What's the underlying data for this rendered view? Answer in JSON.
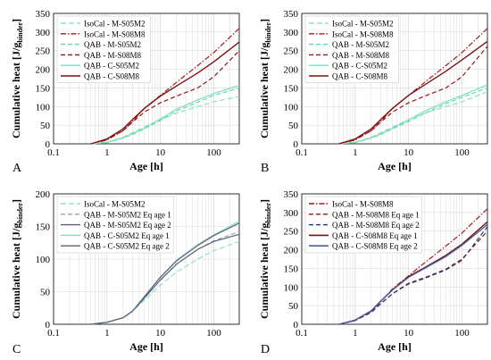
{
  "figure": {
    "ylabel_main": "Cumulative heat [J/g",
    "ylabel_sub": "binder",
    "ylabel_close": "]"
  },
  "colors": {
    "isocal_s05": "#8fe3c2",
    "isocal_s08": "#a01818",
    "qab_m_s05": "#62d9a7",
    "qab_m_s08": "#8b1a1a",
    "qab_c_s05": "#7ddfb8",
    "qab_c_s08": "#7a1212",
    "qab_eq1_s05": "#9aa0b4",
    "qab_eq2_s05": "#5c607a",
    "qab_eq1_s08": "#1f3b74",
    "qab_eq2_s08": "#4a5f9a",
    "grid": "#d9d9d9"
  },
  "chart_data": [
    {
      "panel": "A",
      "type": "line",
      "xscale": "log",
      "xlabel": "Age [h]",
      "ylabel": "Cumulative heat [J/gbinder]",
      "xlim": [
        0.1,
        300
      ],
      "ylim": [
        0,
        350
      ],
      "yticks": [
        0,
        50,
        100,
        150,
        200,
        250,
        300,
        350
      ],
      "xticks": [
        0.1,
        1,
        10,
        100
      ],
      "xticklabels": [
        "0.1",
        "1",
        "10",
        "100"
      ],
      "grid": true,
      "legend": "top-left",
      "series": [
        {
          "name": "IsoCal - M-S05M2",
          "style": "isocal_s05",
          "x": [
            0.5,
            1,
            2,
            3,
            5,
            10,
            20,
            50,
            100,
            300
          ],
          "y": [
            0,
            4,
            18,
            30,
            45,
            65,
            82,
            100,
            113,
            127
          ]
        },
        {
          "name": "IsoCal - M-S08M8",
          "style": "isocal_s08",
          "x": [
            0.5,
            1,
            2,
            3,
            5,
            10,
            20,
            50,
            100,
            300
          ],
          "y": [
            0,
            10,
            35,
            60,
            95,
            130,
            165,
            210,
            245,
            310
          ]
        },
        {
          "name": "QAB - M-S05M2",
          "style": "qab_m_s05",
          "x": [
            0.5,
            1,
            2,
            3,
            5,
            10,
            20,
            50,
            100,
            300
          ],
          "y": [
            0,
            3,
            15,
            25,
            40,
            63,
            88,
            112,
            130,
            150
          ]
        },
        {
          "name": "QAB - M-S08M8",
          "style": "qab_m_s08",
          "x": [
            0.5,
            1,
            2,
            3,
            5,
            10,
            20,
            50,
            100,
            300
          ],
          "y": [
            0,
            12,
            35,
            58,
            85,
            110,
            128,
            150,
            180,
            250
          ]
        },
        {
          "name": "QAB - C-S05M2",
          "style": "qab_c_s05",
          "x": [
            0.5,
            1,
            2,
            3,
            5,
            10,
            20,
            50,
            100,
            300
          ],
          "y": [
            0,
            4,
            16,
            27,
            42,
            67,
            93,
            118,
            135,
            157
          ]
        },
        {
          "name": "QAB - C-S08M8",
          "style": "qab_c_s08",
          "x": [
            0.5,
            1,
            2,
            3,
            5,
            10,
            20,
            50,
            100,
            300
          ],
          "y": [
            0,
            13,
            40,
            65,
            95,
            128,
            155,
            190,
            220,
            273
          ]
        }
      ]
    },
    {
      "panel": "B",
      "type": "line",
      "xscale": "log",
      "xlabel": "Age [h]",
      "ylabel": "Cumulative heat [J/gbinder]",
      "xlim": [
        0.1,
        300
      ],
      "ylim": [
        0,
        350
      ],
      "yticks": [
        0,
        50,
        100,
        150,
        200,
        250,
        300,
        350
      ],
      "xticks": [
        0.1,
        1,
        10,
        100
      ],
      "xticklabels": [
        "0.1",
        "1",
        "10",
        "100"
      ],
      "grid": true,
      "legend": "top-left",
      "series": [
        {
          "name": "IsoCal - M-S05M2",
          "style": "isocal_s05",
          "x": [
            0.5,
            1,
            2,
            3,
            5,
            10,
            20,
            50,
            100,
            300
          ],
          "y": [
            0,
            4,
            18,
            30,
            45,
            65,
            82,
            100,
            113,
            140
          ]
        },
        {
          "name": "IsoCal - M-S08M8",
          "style": "isocal_s08",
          "x": [
            0.5,
            1,
            2,
            3,
            5,
            10,
            20,
            50,
            100,
            300
          ],
          "y": [
            0,
            10,
            35,
            60,
            95,
            130,
            165,
            210,
            245,
            310
          ]
        },
        {
          "name": "QAB - M-S05M2",
          "style": "qab_m_s05",
          "x": [
            0.5,
            1,
            2,
            3,
            5,
            10,
            20,
            50,
            100,
            300
          ],
          "y": [
            0,
            3,
            15,
            25,
            40,
            60,
            82,
            108,
            125,
            150
          ]
        },
        {
          "name": "QAB - M-S08M8",
          "style": "qab_m_s08",
          "x": [
            0.5,
            1,
            2,
            3,
            5,
            10,
            20,
            50,
            100,
            300
          ],
          "y": [
            0,
            12,
            35,
            58,
            85,
            110,
            128,
            150,
            180,
            262
          ]
        },
        {
          "name": "QAB - C-S05M2",
          "style": "qab_c_s05",
          "x": [
            0.5,
            1,
            2,
            3,
            5,
            10,
            20,
            50,
            100,
            300
          ],
          "y": [
            0,
            4,
            16,
            27,
            42,
            64,
            88,
            113,
            130,
            158
          ]
        },
        {
          "name": "QAB - C-S08M8",
          "style": "qab_c_s08",
          "x": [
            0.5,
            1,
            2,
            3,
            5,
            10,
            20,
            50,
            100,
            300
          ],
          "y": [
            0,
            13,
            40,
            65,
            95,
            130,
            158,
            195,
            225,
            275
          ]
        }
      ]
    },
    {
      "panel": "C",
      "type": "line",
      "xscale": "log",
      "xlabel": "Age [h]",
      "ylabel": "Cumulative heat [J/gbinder]",
      "xlim": [
        0.1,
        300
      ],
      "ylim": [
        0,
        200
      ],
      "yticks": [
        0,
        50,
        100,
        150,
        200
      ],
      "xticks": [
        0.1,
        1,
        10,
        100
      ],
      "xticklabels": [
        "0.1",
        "1",
        "10",
        "100"
      ],
      "grid": true,
      "legend": "top-left",
      "series": [
        {
          "name": "IsoCal - M-S05M2",
          "style": "isocal_s05",
          "x": [
            0.5,
            1,
            2,
            3,
            5,
            10,
            20,
            50,
            100,
            300
          ],
          "y": [
            0,
            3,
            10,
            20,
            37,
            60,
            80,
            100,
            113,
            127
          ]
        },
        {
          "name": "QAB - M-S05M2 Eq age 1",
          "style": "qab_eq1_s05",
          "x": [
            0.5,
            1,
            2,
            3,
            5,
            10,
            20,
            50,
            100,
            300
          ],
          "y": [
            0,
            3,
            10,
            20,
            40,
            68,
            92,
            115,
            128,
            142
          ]
        },
        {
          "name": "QAB - M-S05M2 Eq age 2",
          "style": "qab_eq2_s05",
          "x": [
            0.5,
            1,
            2,
            3,
            5,
            10,
            20,
            50,
            100,
            300
          ],
          "y": [
            0,
            3,
            10,
            20,
            40,
            68,
            92,
            115,
            127,
            138
          ]
        },
        {
          "name": "QAB - C-S05M2 Eq age 1",
          "style": "qab_c_s05",
          "x": [
            0.5,
            1,
            2,
            3,
            5,
            10,
            20,
            50,
            100,
            300
          ],
          "y": [
            0,
            3,
            10,
            20,
            42,
            72,
            98,
            122,
            137,
            158
          ]
        },
        {
          "name": "QAB - C-S05M2 Eq age 2",
          "style": "qab_eq2_s05",
          "x": [
            0.5,
            1,
            2,
            3,
            5,
            10,
            20,
            50,
            100,
            300
          ],
          "y": [
            0,
            3,
            10,
            20,
            42,
            72,
            97,
            121,
            136,
            155
          ]
        }
      ]
    },
    {
      "panel": "D",
      "type": "line",
      "xscale": "log",
      "xlabel": "Age [h]",
      "ylabel": "Cumulative heat [J/gbinder]",
      "xlim": [
        0.1,
        300
      ],
      "ylim": [
        0,
        350
      ],
      "yticks": [
        0,
        50,
        100,
        150,
        200,
        250,
        300,
        350
      ],
      "xticks": [
        0.1,
        1,
        10,
        100
      ],
      "xticklabels": [
        "0.1",
        "1",
        "10",
        "100"
      ],
      "grid": true,
      "legend": "top-left",
      "series": [
        {
          "name": "IsoCal - M-S08M8",
          "style": "isocal_s08",
          "x": [
            0.5,
            1,
            2,
            3,
            5,
            10,
            20,
            50,
            100,
            300
          ],
          "y": [
            0,
            10,
            35,
            60,
            95,
            130,
            165,
            210,
            245,
            310
          ]
        },
        {
          "name": "QAB - M-S08M8 Eq age 1",
          "style": "qab_m_s08",
          "x": [
            0.5,
            1,
            2,
            3,
            5,
            10,
            20,
            50,
            100,
            300
          ],
          "y": [
            0,
            10,
            32,
            55,
            82,
            110,
            125,
            148,
            175,
            250
          ]
        },
        {
          "name": "QAB - M-S08M8 Eq age 2",
          "style": "qab_eq1_s08",
          "x": [
            0.5,
            1,
            2,
            3,
            5,
            10,
            20,
            50,
            100,
            300
          ],
          "y": [
            0,
            10,
            32,
            55,
            82,
            108,
            123,
            146,
            172,
            262
          ]
        },
        {
          "name": "QAB - C-S08M8 Eq age 1",
          "style": "qab_c_s08",
          "x": [
            0.5,
            1,
            2,
            3,
            5,
            10,
            20,
            50,
            100,
            300
          ],
          "y": [
            0,
            11,
            36,
            62,
            92,
            128,
            152,
            185,
            215,
            275
          ]
        },
        {
          "name": "QAB - C-S08M8 Eq age 2",
          "style": "qab_eq2_s08",
          "x": [
            0.5,
            1,
            2,
            3,
            5,
            10,
            20,
            50,
            100,
            300
          ],
          "y": [
            0,
            11,
            36,
            62,
            92,
            126,
            150,
            182,
            212,
            268
          ]
        }
      ]
    }
  ]
}
